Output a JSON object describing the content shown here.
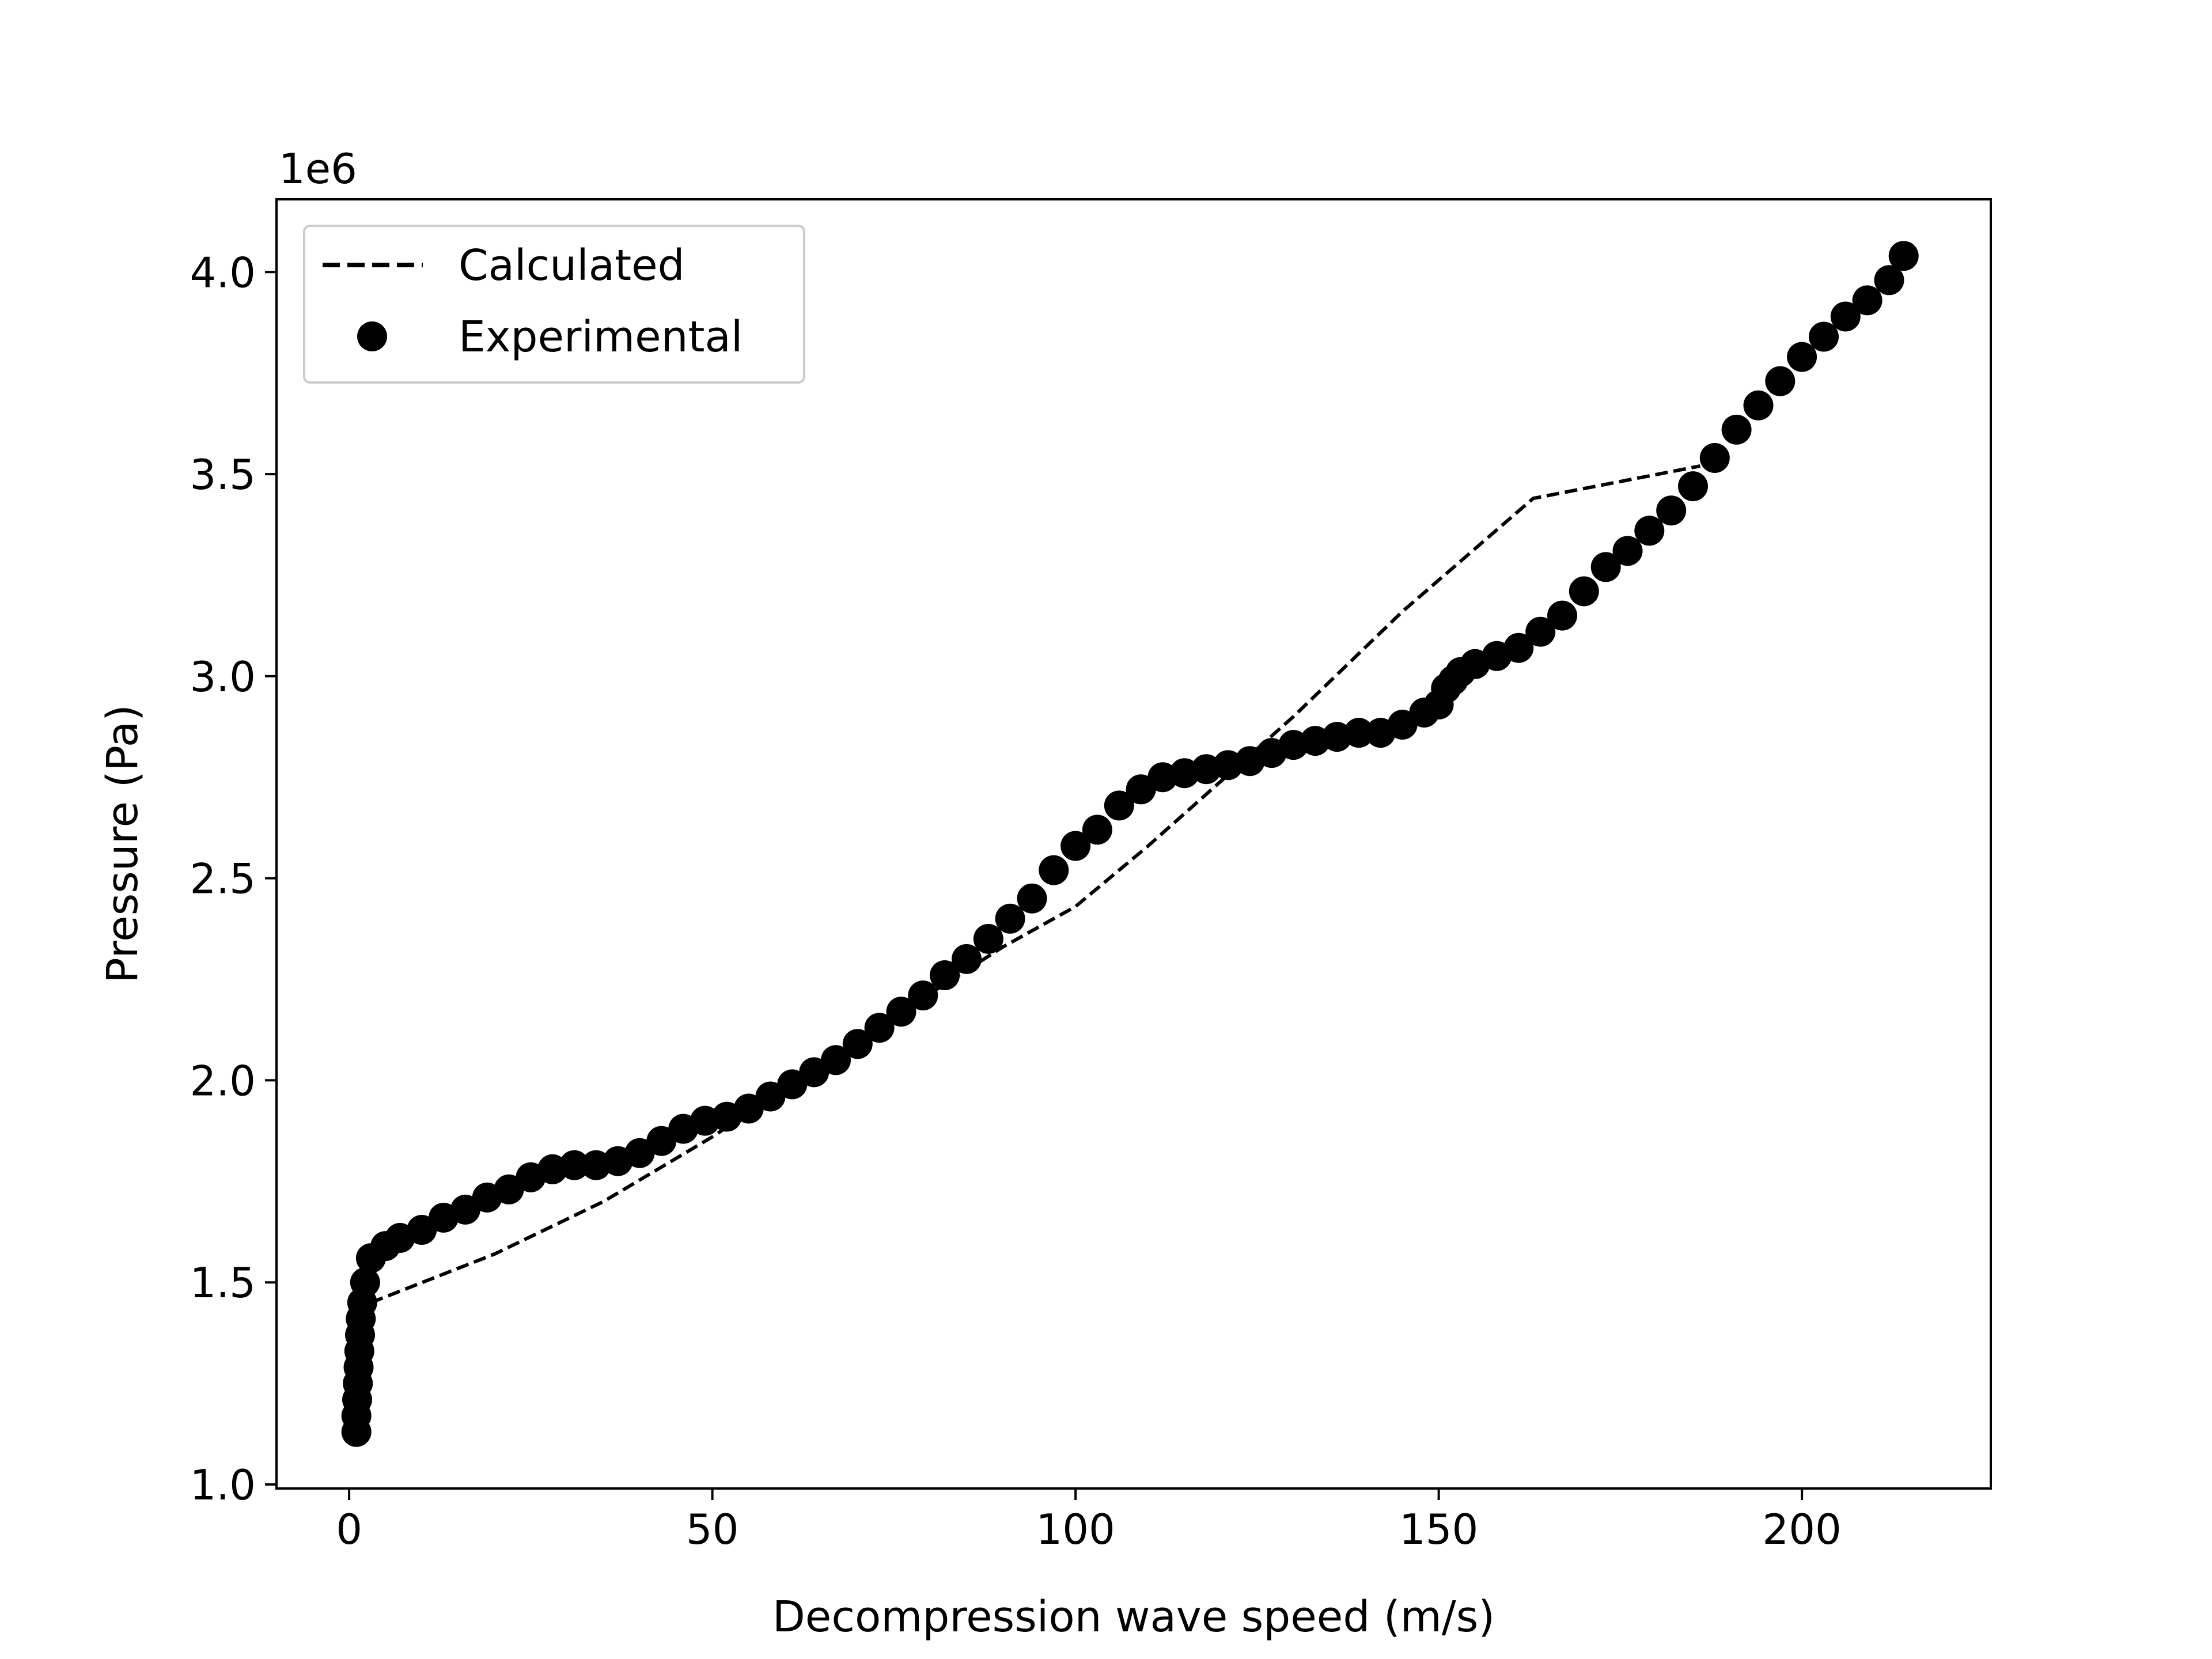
{
  "chart_data": {
    "type": "scatter",
    "xlabel": "Decompression wave speed (m/s)",
    "ylabel": "Pressure (Pa)",
    "y_offset_label": "1e6",
    "y_scale": 1000000,
    "xlim": [
      -10,
      226
    ],
    "ylim": [
      0.99,
      4.18
    ],
    "x_ticks": [
      0,
      50,
      100,
      150,
      200
    ],
    "x_tick_labels": [
      "0",
      "50",
      "100",
      "150",
      "200"
    ],
    "y_ticks": [
      1.0,
      1.5,
      2.0,
      2.5,
      3.0,
      3.5,
      4.0
    ],
    "y_tick_labels": [
      "1.0",
      "1.5",
      "2.0",
      "2.5",
      "3.0",
      "3.5",
      "4.0"
    ],
    "grid": false,
    "legend_position": "top-left",
    "series": [
      {
        "name": "Calculated",
        "style": "dashed-line",
        "color": "#000000",
        "x": [
          3,
          20,
          35,
          50,
          70,
          90,
          100,
          110,
          120,
          130,
          145,
          163,
          186
        ],
        "y": [
          1.45,
          1.57,
          1.7,
          1.86,
          2.1,
          2.33,
          2.43,
          2.58,
          2.74,
          2.9,
          3.16,
          3.44,
          3.52
        ]
      },
      {
        "name": "Experimental",
        "style": "markers",
        "color": "#000000",
        "x": [
          1,
          1,
          1.1,
          1.2,
          1.3,
          1.4,
          1.5,
          1.6,
          1.8,
          2.2,
          3,
          5,
          7,
          10,
          13,
          16,
          19,
          22,
          25,
          28,
          31,
          34,
          37,
          40,
          43,
          46,
          49,
          52,
          55,
          58,
          61,
          64,
          67,
          70,
          73,
          76,
          79,
          82,
          85,
          88,
          91,
          94,
          97,
          100,
          103,
          106,
          109,
          112,
          115,
          118,
          121,
          124,
          127,
          130,
          133,
          136,
          139,
          142,
          145,
          148,
          150,
          151,
          152,
          153,
          155,
          158,
          161,
          164,
          167,
          170,
          173,
          176,
          179,
          182,
          185,
          188,
          191,
          194,
          197,
          200,
          203,
          206,
          209,
          212,
          214
        ],
        "y": [
          1.13,
          1.17,
          1.21,
          1.25,
          1.29,
          1.33,
          1.37,
          1.41,
          1.45,
          1.5,
          1.56,
          1.59,
          1.61,
          1.63,
          1.66,
          1.68,
          1.71,
          1.73,
          1.76,
          1.78,
          1.79,
          1.79,
          1.8,
          1.82,
          1.85,
          1.88,
          1.9,
          1.91,
          1.93,
          1.96,
          1.99,
          2.02,
          2.05,
          2.09,
          2.13,
          2.17,
          2.21,
          2.26,
          2.3,
          2.35,
          2.4,
          2.45,
          2.52,
          2.58,
          2.62,
          2.68,
          2.72,
          2.75,
          2.76,
          2.77,
          2.78,
          2.79,
          2.81,
          2.83,
          2.84,
          2.85,
          2.86,
          2.86,
          2.88,
          2.91,
          2.93,
          2.97,
          2.99,
          3.01,
          3.03,
          3.05,
          3.07,
          3.11,
          3.15,
          3.21,
          3.27,
          3.31,
          3.36,
          3.41,
          3.47,
          3.54,
          3.61,
          3.67,
          3.73,
          3.79,
          3.84,
          3.89,
          3.93,
          3.98,
          4.04
        ]
      }
    ]
  }
}
